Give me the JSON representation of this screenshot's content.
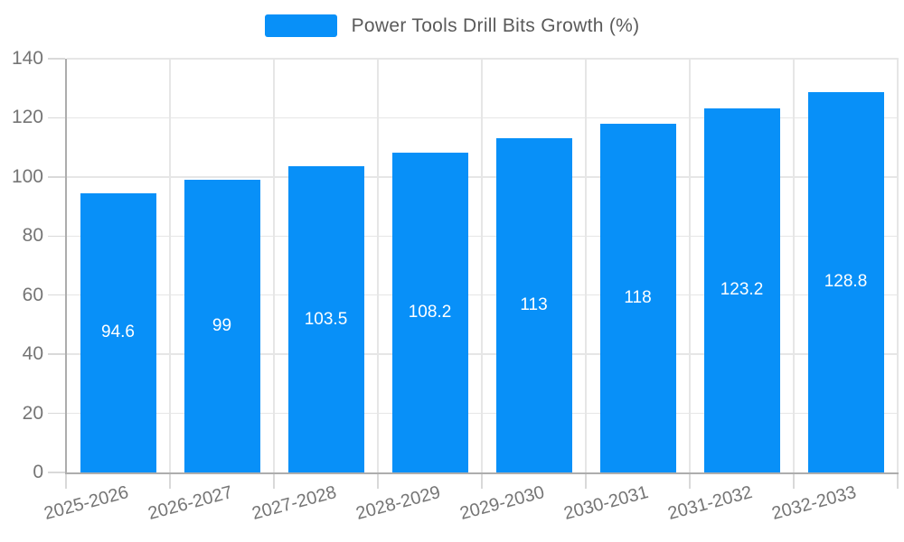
{
  "legend": {
    "label": "Power Tools Drill Bits Growth (%)"
  },
  "chart_data": {
    "type": "bar",
    "title": "Power Tools Drill Bits Growth (%)",
    "categories": [
      "2025-2026",
      "2026-2027",
      "2027-2028",
      "2028-2029",
      "2029-2030",
      "2030-2031",
      "2031-2032",
      "2032-2033"
    ],
    "values": [
      94.6,
      99,
      103.5,
      108.2,
      113,
      118,
      123.2,
      128.8
    ],
    "xlabel": "",
    "ylabel": "",
    "ylim": [
      0,
      140
    ],
    "yticks": [
      0,
      20,
      40,
      60,
      80,
      100,
      120,
      140
    ],
    "grid": true,
    "legend_position": "top",
    "x_label_rotation_deg": -15,
    "colors": {
      "bar": "#0890F8",
      "value_label": "#FFFFFF",
      "axis_label": "#757575",
      "grid_line": "#E6E6E6",
      "axis_line": "#ADADAD",
      "legend_text": "#5A5A5A"
    }
  }
}
